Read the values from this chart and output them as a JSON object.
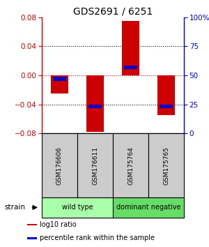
{
  "title": "GDS2691 / 6251",
  "samples": [
    "GSM176606",
    "GSM176611",
    "GSM175764",
    "GSM175765"
  ],
  "log10_ratios": [
    -0.025,
    -0.078,
    0.075,
    -0.055
  ],
  "percentile_ranks": [
    47,
    23,
    57,
    23
  ],
  "bar_color": "#cc0000",
  "percentile_color": "#0000cc",
  "ylim": [
    -0.08,
    0.08
  ],
  "yticks_left": [
    -0.08,
    -0.04,
    0,
    0.04,
    0.08
  ],
  "yticks_right": [
    0,
    25,
    50,
    75,
    100
  ],
  "groups": [
    {
      "label": "wild type",
      "indices": [
        0,
        1
      ],
      "color": "#aaffaa"
    },
    {
      "label": "dominant negative",
      "indices": [
        2,
        3
      ],
      "color": "#66dd66"
    }
  ],
  "strain_label": "strain",
  "legend": [
    {
      "color": "#cc0000",
      "label": "log10 ratio"
    },
    {
      "color": "#0000cc",
      "label": "percentile rank within the sample"
    }
  ],
  "bar_width": 0.5,
  "title_color": "#000000",
  "left_axis_color": "#cc0000",
  "right_axis_color": "#0000cc",
  "zero_line_color": "#cc0000",
  "sample_box_color": "#cccccc",
  "bg_color": "#ffffff"
}
